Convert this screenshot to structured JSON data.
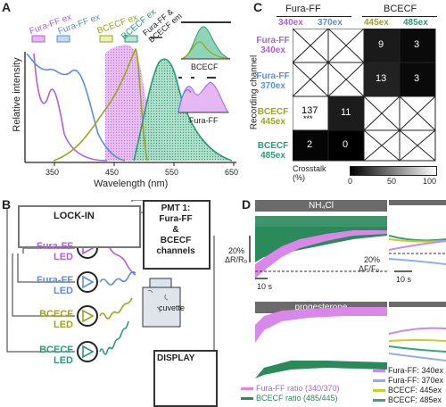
{
  "panels": {
    "a": "A",
    "b": "B",
    "c": "C",
    "d": "D"
  },
  "panelA": {
    "ylabel": "Relative intensity",
    "xlabel": "Wavelength (nm)",
    "xticks": [
      "350",
      "450",
      "550",
      "650"
    ],
    "bands": {
      "fura340": "Fura-FF ex",
      "fura370": "Fura-FF ex",
      "bcecf445": "BCECF ex",
      "bcecf485": "BCECF ex",
      "emission": "Fura-FF & BCECF em"
    },
    "inset_bcecf": "BCECF",
    "inset_fura": "Fura-FF",
    "colors": {
      "fura_exc": "#b05fd8",
      "fura_exc2": "#5b8fd6",
      "bcecf_exc": "#9aa51c",
      "bcecf_em": "#2a9a78"
    }
  },
  "panelB": {
    "lockin": "LOCK-IN",
    "pmt_line1": "PMT 1:",
    "pmt_line2": "Fura-FF",
    "pmt_line3": "&",
    "pmt_line4": "BCECF",
    "pmt_line5": "channels",
    "cuvette": "cuvette",
    "display": "DISPLAY",
    "leds": [
      {
        "line1": "Fura-FF",
        "line2": "LED",
        "color": "#b05fd8"
      },
      {
        "line1": "Fura-FF",
        "line2": "LED",
        "color": "#5b8fd6"
      },
      {
        "line1": "BCECF",
        "line2": "LED",
        "color": "#9aa51c"
      },
      {
        "line1": "BCECF",
        "line2": "LED",
        "color": "#2a9a78"
      }
    ]
  },
  "panelC": {
    "group1": "Fura-FF",
    "group2": "BCECF",
    "cols": [
      "340ex",
      "370ex",
      "445ex",
      "485ex"
    ],
    "ylabel": "Recording channel",
    "rows": [
      {
        "l1": "Fura-FF",
        "l2": "340ex",
        "color": "#b05fd8"
      },
      {
        "l1": "Fura-FF",
        "l2": "370ex",
        "color": "#5b8fd6"
      },
      {
        "l1": "BCECF",
        "l2": "445ex",
        "color": "#9aa51c"
      },
      {
        "l1": "BCECF",
        "l2": "485ex",
        "color": "#2a9a78"
      }
    ],
    "values": {
      "r0c2": "9",
      "r0c3": "3",
      "r1c2": "13",
      "r1c3": "3",
      "r2c0": "137",
      "r2c0_sig": "***",
      "r2c1": "11",
      "r3c0": "2",
      "r3c1": "0"
    },
    "cb_label1": "Crosstalk",
    "cb_label2": "(%)",
    "cb_ticks": [
      "0",
      "50",
      "100"
    ]
  },
  "panelD": {
    "title1": "NH₄Cl",
    "title2": "progesterone",
    "scale_left": "20%",
    "scale_left_unit": "ΔR/R₀",
    "scale_right": "20%",
    "scale_right_unit": "ΔF/F₀",
    "time1": "10 s",
    "time2": "10 s",
    "legend_left": [
      {
        "label": "Fura-FF ratio (340/370)",
        "color": "#d987e8"
      },
      {
        "label": "BCECF ratio (485/445)",
        "color": "#2a8a5a"
      }
    ],
    "legend_right": [
      {
        "label": "Fura-FF: 340ex",
        "color": "#c98be6"
      },
      {
        "label": "Fura-FF: 370ex",
        "color": "#8fb0e6"
      },
      {
        "label": "BCECF: 445ex",
        "color": "#c8cc2e"
      },
      {
        "label": "BCECF: 485ex",
        "color": "#3aa37e"
      }
    ]
  }
}
